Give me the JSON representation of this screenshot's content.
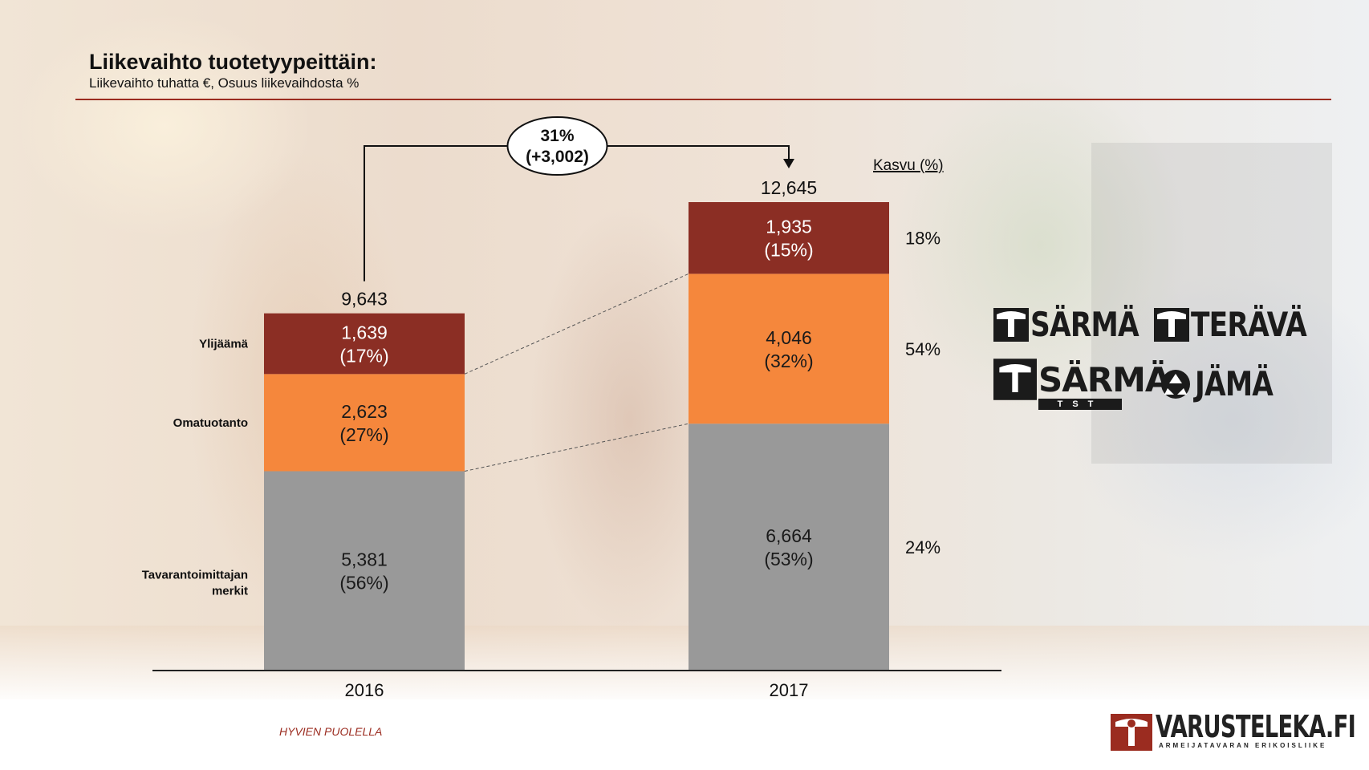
{
  "header": {
    "title": "Liikevaihto tuotetyypeittäin:",
    "subtitle": "Liikevaihto tuhatta €, Osuus liikevaihdosta %"
  },
  "chart_data": {
    "type": "bar",
    "stacked": true,
    "categories": [
      "2016",
      "2017"
    ],
    "series": [
      {
        "name": "Tavarantoimittajan merkit",
        "values": [
          5381,
          6664
        ],
        "labels": [
          "5,381\n(56%)",
          "6,664\n(53%)"
        ],
        "color": "#999999",
        "text_color": "#1a1a1a"
      },
      {
        "name": "Omatuotanto",
        "values": [
          2623,
          4046
        ],
        "labels": [
          "2,623\n(27%)",
          "4,046\n(32%)"
        ],
        "color": "#f5873c",
        "text_color": "#1a1a1a"
      },
      {
        "name": "Ylijäämä",
        "values": [
          1639,
          1935
        ],
        "labels": [
          "1,639\n(17%)",
          "1,935\n(15%)"
        ],
        "color": "#8b2e24",
        "text_color": "#ffffff"
      }
    ],
    "totals": [
      "9,643",
      "12,645"
    ],
    "growth": {
      "header": "Kasvu (%)",
      "values": [
        "24%",
        "54%",
        "18%"
      ]
    },
    "change_label": [
      "31%",
      "(+3,002)"
    ],
    "ylim": [
      0,
      12645
    ]
  },
  "logos": [
    "SÄRMÄ",
    "TERÄVÄ",
    "SÄRMÄ",
    "TST",
    "JÄMÄ"
  ],
  "footer": {
    "slogan": "HYVIEN PUOLELLA",
    "brand": "VARUSTELEKA.FI",
    "brand_tagline": "ARMEIJATAVARAN ERIKOISLIIKE"
  }
}
